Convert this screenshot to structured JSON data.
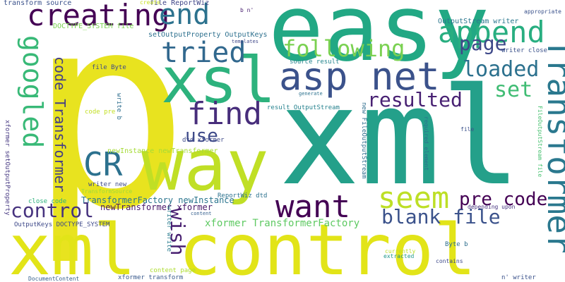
{
  "words": [
    {
      "text": "p",
      "color": "#e8e31f"
    },
    {
      "text": "xml",
      "color": "#24a08a"
    },
    {
      "text": "easy",
      "color": "#22a884"
    },
    {
      "text": "xml control",
      "color": "#e2e418"
    },
    {
      "text": "way",
      "color": "#c0df25"
    },
    {
      "text": "xsl",
      "color": "#2db27d"
    },
    {
      "text": "asp net",
      "color": "#3b528b"
    },
    {
      "text": "creating",
      "color": "#440154"
    },
    {
      "text": "append",
      "color": "#28ae80"
    },
    {
      "text": "Transformer",
      "color": "#2a788e"
    },
    {
      "text": "find",
      "color": "#472d7b"
    },
    {
      "text": "want",
      "color": "#440154"
    },
    {
      "text": "tried",
      "color": "#31688e"
    },
    {
      "text": "end",
      "color": "#2c728e"
    },
    {
      "text": "following",
      "color": "#7ad151"
    },
    {
      "text": "googled",
      "color": "#38b977"
    },
    {
      "text": "control",
      "color": "#46327e"
    },
    {
      "text": "seem",
      "color": "#bddf26"
    },
    {
      "text": "CR",
      "color": "#2c718e"
    },
    {
      "text": "resulted",
      "color": "#482173"
    },
    {
      "text": "loaded",
      "color": "#2c718e"
    },
    {
      "text": "page",
      "color": "#3e4989"
    },
    {
      "text": "set",
      "color": "#3fbc73"
    },
    {
      "text": "use",
      "color": "#3e4a89"
    },
    {
      "text": "blank file",
      "color": "#3b528b"
    },
    {
      "text": "pre code",
      "color": "#440154"
    },
    {
      "text": "wish",
      "color": "#481f70"
    },
    {
      "text": "code Transformer",
      "color": "#433e85"
    },
    {
      "text": "xformer TransformerFactory",
      "color": "#5ec962"
    },
    {
      "text": "TransformerFactory newInstance",
      "color": "#2b758e"
    },
    {
      "text": "newTransformer xformer",
      "color": "#481769"
    },
    {
      "text": "newInstance newTransformer",
      "color": "#a5db36"
    },
    {
      "text": "dtd xformer",
      "color": "#3e4a89"
    },
    {
      "text": "setOutputProperty OutputKeys",
      "color": "#2d708e"
    },
    {
      "text": "transform source",
      "color": "#3b528b"
    },
    {
      "text": "DOCTYPE_SYSTEM file",
      "color": "#7ad151"
    },
    {
      "text": "file ReportWiz",
      "color": "#404688"
    },
    {
      "text": "OutputStream writer",
      "color": "#2a778e"
    },
    {
      "text": "writer close",
      "color": "#3b528b"
    },
    {
      "text": "source result",
      "color": "#25858e"
    },
    {
      "text": "result OutputStream",
      "color": "#26828e"
    },
    {
      "text": "file Byte",
      "color": "#3e4989"
    },
    {
      "text": "code pre",
      "color": "#c2df23"
    },
    {
      "text": "writer new",
      "color": "#3e4a89"
    },
    {
      "text": "TransformSource",
      "color": "#9fda3a"
    },
    {
      "text": "close code",
      "color": "#2db27d"
    },
    {
      "text": "OutputKeys DOCTYPE_SYSTEM",
      "color": "#3e4989"
    },
    {
      "text": "content page",
      "color": "#addc30"
    },
    {
      "text": "xformer transform",
      "color": "#38598c"
    },
    {
      "text": "DocumentContent",
      "color": "#35608d"
    },
    {
      "text": "ReportWiz dtd",
      "color": "#2c728e"
    },
    {
      "text": "extracted",
      "color": "#1f978b"
    },
    {
      "text": "Byte b",
      "color": "#2e6e8e"
    },
    {
      "text": "currently",
      "color": "#bddf26"
    },
    {
      "text": "contains",
      "color": "#3e4a89"
    },
    {
      "text": "n' writer",
      "color": "#3b528b"
    },
    {
      "text": "depending upon",
      "color": "#46337f"
    },
    {
      "text": "content",
      "color": "#355f8d"
    },
    {
      "text": "generate",
      "color": "#2c728e"
    },
    {
      "text": "templates",
      "color": "#3f4788"
    },
    {
      "text": "b n'",
      "color": "#481f70"
    },
    {
      "text": "create",
      "color": "#c8e020"
    },
    {
      "text": "appropriate",
      "color": "#3b528b"
    },
    {
      "text": "file",
      "color": "#3b528b"
    },
    {
      "text": "xformer setOutputProperty",
      "color": "#453781"
    },
    {
      "text": "write b",
      "color": "#2e6e8e"
    },
    {
      "text": "writer write",
      "color": "#297b8e"
    },
    {
      "text": "new FileOutputStream",
      "color": "#2e6e8e"
    },
    {
      "text": "required element",
      "color": "#2d708e"
    },
    {
      "text": "FileOutputStream file",
      "color": "#46c06f"
    }
  ]
}
